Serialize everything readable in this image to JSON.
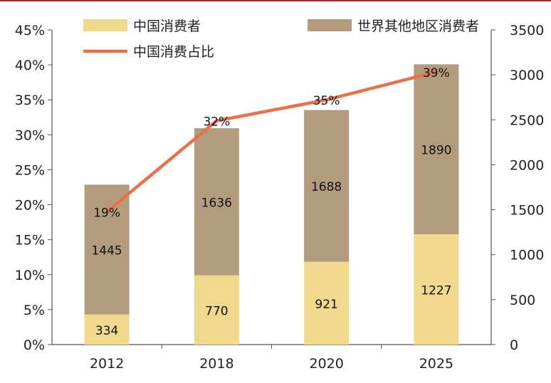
{
  "chart_data": {
    "type": "bar",
    "stacked": true,
    "categories": [
      "2012",
      "2018",
      "2020",
      "2025"
    ],
    "series": [
      {
        "name": "中国消费者",
        "values": [
          334,
          770,
          921,
          1227
        ],
        "color": "#f0d98c",
        "axis": "right"
      },
      {
        "name": "世界其他地区消费者",
        "values": [
          1445,
          1636,
          1688,
          1890
        ],
        "color": "#b39c7d",
        "axis": "right"
      },
      {
        "name": "中国消费占比",
        "type": "line",
        "values": [
          19,
          32,
          35,
          39
        ],
        "color": "#e8704a",
        "axis": "left"
      }
    ],
    "bar_value_labels": [
      [
        "334",
        "770",
        "921",
        "1227"
      ],
      [
        "1445",
        "1636",
        "1688",
        "1890"
      ]
    ],
    "line_value_labels": [
      "19%",
      "32%",
      "35%",
      "39%"
    ],
    "left_axis": {
      "ylim": [
        0,
        45
      ],
      "ticks": [
        "0%",
        "5%",
        "10%",
        "15%",
        "20%",
        "25%",
        "30%",
        "35%",
        "40%",
        "45%"
      ]
    },
    "right_axis": {
      "ylim": [
        0,
        3500
      ],
      "ticks": [
        "0",
        "500",
        "1000",
        "1500",
        "2000",
        "2500",
        "3000",
        "3500"
      ]
    },
    "legend": {
      "placement": "top"
    },
    "grid": false
  }
}
